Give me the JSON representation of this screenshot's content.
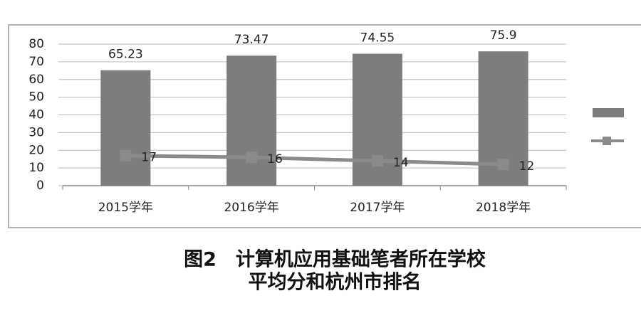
{
  "chart_data": {
    "type": "bar",
    "categories": [
      "2015学年",
      "2016学年",
      "2017学年",
      "2018学年"
    ],
    "series": [
      {
        "type": "bar",
        "color": "#7d7d7d",
        "values": [
          65.23,
          73.47,
          74.55,
          75.9
        ]
      },
      {
        "type": "line",
        "color": "#8a8a8a",
        "values": [
          17,
          16,
          14,
          12
        ]
      }
    ],
    "ylim": [
      0,
      80
    ],
    "yticks": [
      0,
      10,
      20,
      30,
      40,
      50,
      60,
      70,
      80
    ],
    "grid": true,
    "caption": [
      "图2　计算机应用基础笔者所在学校",
      "平均分和杭州市排名"
    ]
  }
}
